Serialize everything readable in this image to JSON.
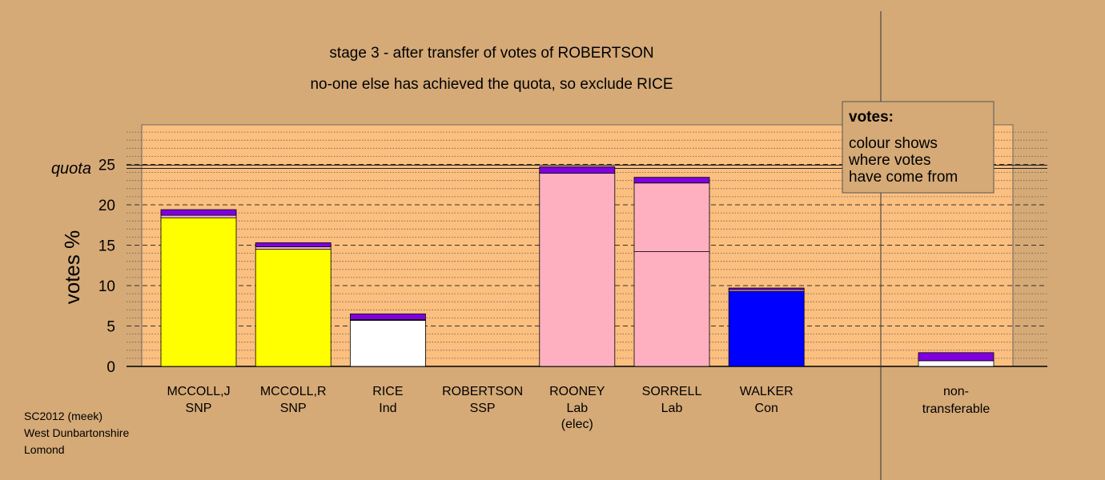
{
  "chart_data": {
    "type": "bar",
    "stacked": true,
    "title": "stage 3 - after transfer of votes of ROBERTSON",
    "subtitle": "no-one else has achieved the quota, so exclude RICE",
    "ylabel": "votes %",
    "ylim": [
      0,
      25
    ],
    "yticks": [
      0,
      5,
      10,
      15,
      20,
      25
    ],
    "quota_label": "quota",
    "quota_value": 24.7,
    "candidates": [
      {
        "name": "MCCOLL,J",
        "party": "SNP",
        "note": "",
        "segments": [
          {
            "value": 18.4,
            "color": "#ffff00"
          },
          {
            "value": 0.3,
            "color": "#ffbbc9"
          },
          {
            "value": 0.7,
            "color": "#8000e0"
          }
        ]
      },
      {
        "name": "MCCOLL,R",
        "party": "SNP",
        "note": "",
        "segments": [
          {
            "value": 14.5,
            "color": "#ffff00"
          },
          {
            "value": 0.3,
            "color": "#ffbbc9"
          },
          {
            "value": 0.5,
            "color": "#8000e0"
          }
        ]
      },
      {
        "name": "RICE",
        "party": "Ind",
        "note": "",
        "segments": [
          {
            "value": 5.7,
            "color": "#ffffff"
          },
          {
            "value": 0.1,
            "color": "#ffbbc9"
          },
          {
            "value": 0.7,
            "color": "#8000e0"
          }
        ]
      },
      {
        "name": "ROBERTSON",
        "party": "SSP",
        "note": "",
        "segments": []
      },
      {
        "name": "ROONEY",
        "party": "Lab",
        "note": "(elec)",
        "segments": [
          {
            "value": 23.9,
            "color": "#ffb0c0"
          },
          {
            "value": 0.8,
            "color": "#8000e0"
          }
        ]
      },
      {
        "name": "SORRELL",
        "party": "Lab",
        "note": "",
        "segments": [
          {
            "value": 14.2,
            "color": "#ffb0c0"
          },
          {
            "value": 8.5,
            "color": "#ffb0c0"
          },
          {
            "value": 0.7,
            "color": "#8000e0"
          }
        ]
      },
      {
        "name": "WALKER",
        "party": "Con",
        "note": "",
        "segments": [
          {
            "value": 9.3,
            "color": "#0000ff"
          },
          {
            "value": 0.2,
            "color": "#ffbbc9"
          },
          {
            "value": 0.2,
            "color": "#8000e0"
          }
        ]
      }
    ],
    "non_transferable": {
      "name": "non-",
      "name2": "transferable",
      "segments": [
        {
          "value": 0.7,
          "color": "#ffffff"
        },
        {
          "value": 1.0,
          "color": "#8000e0"
        }
      ]
    },
    "legend": {
      "title": "votes:",
      "lines": [
        "colour shows",
        "where votes",
        "have come from"
      ],
      "placement": "top-right"
    },
    "grid": true
  },
  "footer": {
    "lines": [
      "SC2012 (meek)",
      "West Dunbartonshire",
      "Lomond"
    ]
  },
  "colors": {
    "page_bg": "#d5aa77",
    "plot_bg": "#fbbf80",
    "transfer": "#8000e0"
  }
}
